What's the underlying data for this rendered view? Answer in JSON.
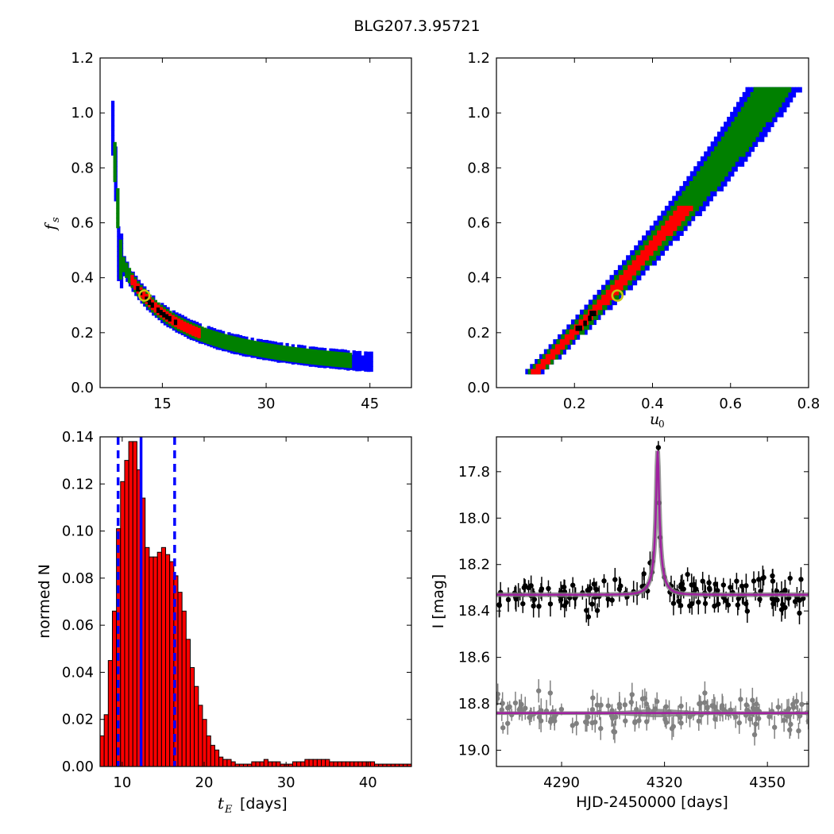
{
  "figure": {
    "title": "BLG207.3.95721"
  },
  "chart_data": [
    {
      "panel": "top-left",
      "type": "heatmap",
      "title": "",
      "xlabel": "",
      "ylabel": "f_s",
      "xlim": [
        6,
        51
      ],
      "ylim": [
        0,
        1.2
      ],
      "xticks": [
        "15",
        "30",
        "45"
      ],
      "yticks": [
        "0.0",
        "0.2",
        "0.4",
        "0.6",
        "0.8",
        "1.0",
        "1.2"
      ],
      "marker": {
        "x": 12.4,
        "y": 0.335
      },
      "levels": [
        {
          "name": "blue",
          "color": "#0000ff",
          "halfwidth": 0.026,
          "xrange": [
            7.6,
            45.2
          ]
        },
        {
          "name": "green",
          "color": "#008000",
          "halfwidth": 0.02,
          "xrange": [
            7.9,
            42.2
          ]
        },
        {
          "name": "red",
          "color": "#ff0000",
          "halfwidth": 0.011,
          "xrange": [
            10.4,
            20.2
          ]
        },
        {
          "name": "black",
          "color": "#000000",
          "halfwidth": 0.004,
          "xrange": [
            11.2,
            17.2
          ]
        }
      ]
    },
    {
      "panel": "top-right",
      "type": "heatmap",
      "title": "",
      "xlabel": "u_0",
      "ylabel": "",
      "xlim": [
        0,
        0.8
      ],
      "ylim": [
        0,
        1.2
      ],
      "xticks": [
        "0.2",
        "0.4",
        "0.6",
        "0.8"
      ],
      "yticks": [
        "0.0",
        "0.2",
        "0.4",
        "0.6",
        "0.8",
        "1.0",
        "1.2"
      ],
      "marker": {
        "x": 0.31,
        "y": 0.335
      },
      "levels": [
        {
          "name": "blue",
          "color": "#0000ff",
          "halfwidth": 0.05,
          "yrange": [
            0.05,
            1.08
          ]
        },
        {
          "name": "green",
          "color": "#008000",
          "halfwidth": 0.035,
          "yrange": [
            0.05,
            1.08
          ]
        },
        {
          "name": "red",
          "color": "#ff0000",
          "halfwidth": 0.018,
          "yrange": [
            0.05,
            0.66
          ]
        },
        {
          "name": "black",
          "color": "#000000",
          "halfwidth": 0.007,
          "yrange": [
            0.19,
            0.27
          ]
        }
      ]
    },
    {
      "panel": "bottom-left",
      "type": "bar",
      "title": "",
      "xlabel": "t_E [days]",
      "ylabel": "normed N",
      "xlim": [
        7.3,
        45.3
      ],
      "ylim": [
        0,
        0.14
      ],
      "xticks": [
        "10",
        "20",
        "30",
        "40"
      ],
      "yticks": [
        "0.00",
        "0.02",
        "0.04",
        "0.06",
        "0.08",
        "0.10",
        "0.12",
        "0.14"
      ],
      "bin_start": 7.3,
      "bin_width": 0.5,
      "values": [
        0.013,
        0.022,
        0.045,
        0.066,
        0.101,
        0.121,
        0.13,
        0.138,
        0.138,
        0.126,
        0.114,
        0.093,
        0.089,
        0.089,
        0.091,
        0.093,
        0.09,
        0.087,
        0.081,
        0.074,
        0.066,
        0.054,
        0.042,
        0.034,
        0.026,
        0.02,
        0.013,
        0.009,
        0.007,
        0.004,
        0.003,
        0.003,
        0.002,
        0.001,
        0.001,
        0.001,
        0.001,
        0.002,
        0.002,
        0.002,
        0.003,
        0.002,
        0.002,
        0.002,
        0.001,
        0.001,
        0.001,
        0.002,
        0.002,
        0.002,
        0.003,
        0.003,
        0.003,
        0.003,
        0.003,
        0.003,
        0.002,
        0.002,
        0.002,
        0.002,
        0.002,
        0.002,
        0.002,
        0.002,
        0.002,
        0.002,
        0.002,
        0.001,
        0.001,
        0.001,
        0.001,
        0.001,
        0.001,
        0.001,
        0.001,
        0.001
      ],
      "bar_color": "#ff0000",
      "vlines": [
        {
          "x": 12.3,
          "style": "solid",
          "color": "#0000ff"
        },
        {
          "x": 9.5,
          "style": "dashed",
          "color": "#0000ff"
        },
        {
          "x": 16.4,
          "style": "dashed",
          "color": "#0000ff"
        }
      ]
    },
    {
      "panel": "bottom-right",
      "type": "scatter",
      "title": "",
      "xlabel": "HJD-2450000 [days]",
      "ylabel": "I [mag]",
      "xlim": [
        4271,
        4362
      ],
      "ylim": [
        19.07,
        17.65
      ],
      "xticks": [
        "4290",
        "4320",
        "4350"
      ],
      "yticks": [
        "17.8",
        "18.0",
        "18.2",
        "18.4",
        "18.6",
        "18.8",
        "19.0"
      ],
      "model": {
        "baseline": 18.33,
        "peak": 17.71,
        "t0": 4318,
        "tE": 3.5,
        "color": "#a020a0"
      },
      "residual_baseline": 18.84,
      "series": [
        {
          "color": "#000000",
          "npoints": 150,
          "scatter": 0.055
        },
        {
          "color": "#808080",
          "npoints": 150,
          "scatter": 0.055
        }
      ]
    }
  ]
}
